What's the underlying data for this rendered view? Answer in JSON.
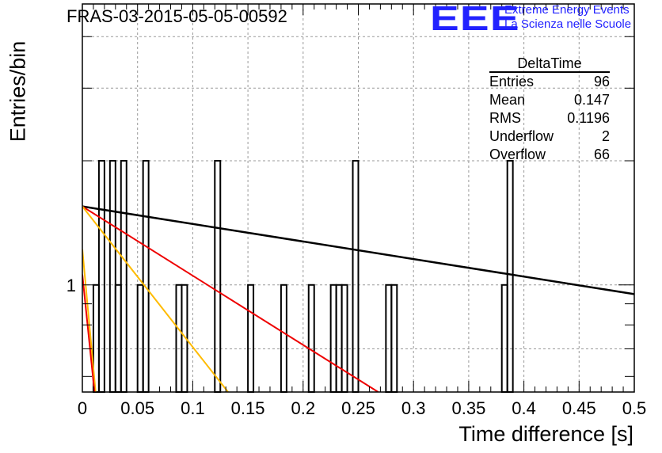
{
  "chart_data": {
    "type": "histogram",
    "title": "FRAS-03-2015-05-05-00592",
    "xlabel": "Time difference [s]",
    "ylabel": "Entries/bin",
    "xlim": [
      0,
      0.5
    ],
    "ylog": true,
    "ylim": [
      0.55,
      4.8
    ],
    "x_ticks": [
      "0",
      "0.05",
      "0.1",
      "0.15",
      "0.2",
      "0.25",
      "0.3",
      "0.35",
      "0.4",
      "0.45",
      "0.5"
    ],
    "x_tick_values": [
      0,
      0.05,
      0.1,
      0.15,
      0.2,
      0.25,
      0.3,
      0.35,
      0.4,
      0.45,
      0.5
    ],
    "y_ticks": [
      "1"
    ],
    "y_tick_values": [
      1
    ],
    "grid": true,
    "bin_width": 0.005,
    "histogram_bins": [
      {
        "x": 0.01,
        "count": 1
      },
      {
        "x": 0.015,
        "count": 2
      },
      {
        "x": 0.025,
        "count": 2
      },
      {
        "x": 0.03,
        "count": 1
      },
      {
        "x": 0.035,
        "count": 2
      },
      {
        "x": 0.05,
        "count": 1
      },
      {
        "x": 0.055,
        "count": 2
      },
      {
        "x": 0.085,
        "count": 1
      },
      {
        "x": 0.09,
        "count": 1
      },
      {
        "x": 0.12,
        "count": 2
      },
      {
        "x": 0.15,
        "count": 1
      },
      {
        "x": 0.18,
        "count": 1
      },
      {
        "x": 0.205,
        "count": 1
      },
      {
        "x": 0.225,
        "count": 1
      },
      {
        "x": 0.23,
        "count": 1
      },
      {
        "x": 0.235,
        "count": 1
      },
      {
        "x": 0.245,
        "count": 2
      },
      {
        "x": 0.275,
        "count": 1
      },
      {
        "x": 0.28,
        "count": 1
      },
      {
        "x": 0.38,
        "count": 1
      },
      {
        "x": 0.385,
        "count": 2
      }
    ],
    "fit_lines": [
      {
        "color": "#000000",
        "x0": 0,
        "y0": 1.55,
        "x1": 0.5,
        "y1": 0.95
      },
      {
        "color": "#ee0000",
        "x0": 0,
        "y0": 1.55,
        "x1": 0.268,
        "y1": 0.55
      },
      {
        "color": "#ffbb00",
        "x0": 0,
        "y0": 1.55,
        "x1": 0.132,
        "y1": 0.55
      },
      {
        "color": "#ffbb00",
        "x0": 0,
        "y0": 1.22,
        "x1": 0.012,
        "y1": 0.55
      },
      {
        "color": "#ee0000",
        "x0": 0,
        "y0": 1.06,
        "x1": 0.011,
        "y1": 0.55
      }
    ]
  },
  "logo": {
    "mark": "EEE",
    "line1": "Extreme Energy Events",
    "line2": "La Scienza nelle Scuole"
  },
  "stats": {
    "name": "DeltaTime",
    "rows": [
      {
        "label": "Entries",
        "value": "96"
      },
      {
        "label": "Mean",
        "value": "0.147"
      },
      {
        "label": "RMS",
        "value": "0.1196"
      },
      {
        "label": "Underflow",
        "value": "2"
      },
      {
        "label": "Overflow",
        "value": "66"
      }
    ]
  }
}
